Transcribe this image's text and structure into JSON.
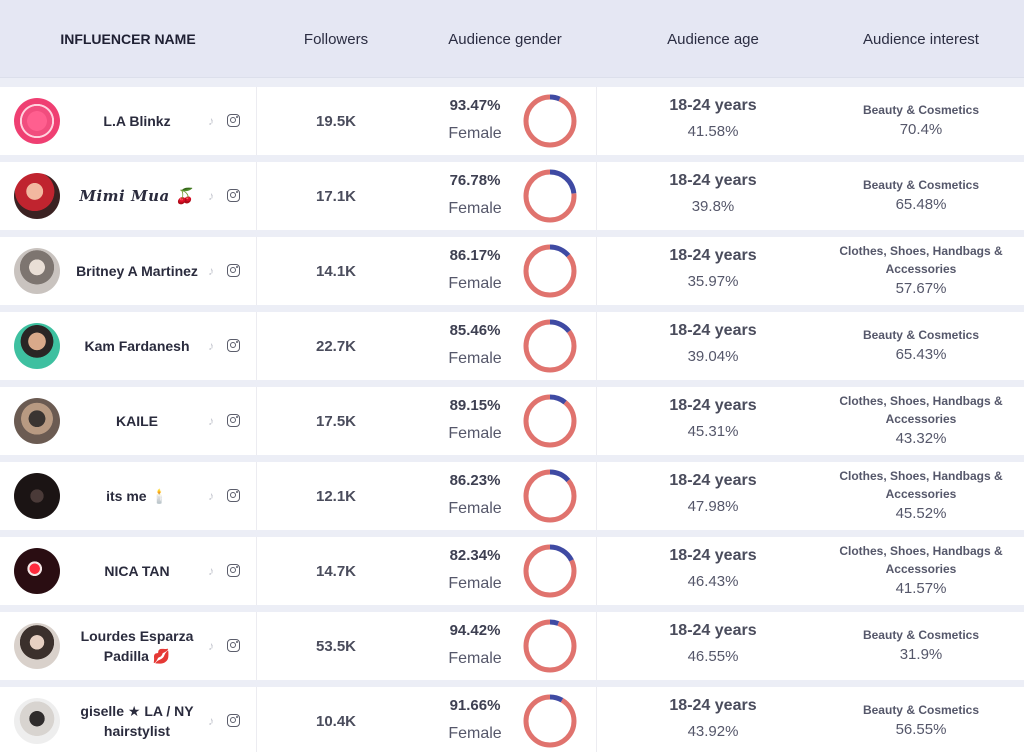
{
  "header": {
    "name": "INFLUENCER NAME",
    "followers": "Followers",
    "gender": "Audience gender",
    "age": "Audience age",
    "interest": "Audience interest"
  },
  "colors": {
    "female_ring": "#e0736e",
    "male_ring": "#3f4aa3",
    "tiktok_icon": "#c6c8d0",
    "instagram_icon": "#5b5d6b"
  },
  "rows": [
    {
      "name": "L.A Blinkz",
      "followers": "19.5K",
      "gender_pct": "93.47%",
      "gender_value": 93.47,
      "gender_label": "Female",
      "age": "18-24 years",
      "age_pct": "41.58%",
      "interest": "Beauty & Cosmetics",
      "interest_pct": "70.4%",
      "avatar": "logo-avatar"
    },
    {
      "name": "𝑴𝒊𝒎𝒊 𝑴𝒖𝒂 🍒",
      "followers": "17.1K",
      "gender_pct": "76.78%",
      "gender_value": 76.78,
      "gender_label": "Female",
      "age": "18-24 years",
      "age_pct": "39.8%",
      "interest": "Beauty & Cosmetics",
      "interest_pct": "65.48%",
      "avatar": "photo-avatar"
    },
    {
      "name": "Britney A Martinez",
      "followers": "14.1K",
      "gender_pct": "86.17%",
      "gender_value": 86.17,
      "gender_label": "Female",
      "age": "18-24 years",
      "age_pct": "35.97%",
      "interest": "Clothes, Shoes, Handbags & Accessories",
      "interest_pct": "57.67%",
      "avatar": "photo-avatar"
    },
    {
      "name": "Kam Fardanesh",
      "followers": "22.7K",
      "gender_pct": "85.46%",
      "gender_value": 85.46,
      "gender_label": "Female",
      "age": "18-24 years",
      "age_pct": "39.04%",
      "interest": "Beauty & Cosmetics",
      "interest_pct": "65.43%",
      "avatar": "photo-avatar"
    },
    {
      "name": "KAILE",
      "followers": "17.5K",
      "gender_pct": "89.15%",
      "gender_value": 89.15,
      "gender_label": "Female",
      "age": "18-24 years",
      "age_pct": "45.31%",
      "interest": "Clothes, Shoes, Handbags & Accessories",
      "interest_pct": "43.32%",
      "avatar": "photo-avatar"
    },
    {
      "name": "its me 🕯️",
      "followers": "12.1K",
      "gender_pct": "86.23%",
      "gender_value": 86.23,
      "gender_label": "Female",
      "age": "18-24 years",
      "age_pct": "47.98%",
      "interest": "Clothes, Shoes, Handbags & Accessories",
      "interest_pct": "45.52%",
      "avatar": "photo-avatar"
    },
    {
      "name": "NICA TAN",
      "followers": "14.7K",
      "gender_pct": "82.34%",
      "gender_value": 82.34,
      "gender_label": "Female",
      "age": "18-24 years",
      "age_pct": "46.43%",
      "interest": "Clothes, Shoes, Handbags & Accessories",
      "interest_pct": "41.57%",
      "avatar": "photo-avatar"
    },
    {
      "name": "Lourdes Esparza Padilla 💋",
      "followers": "53.5K",
      "gender_pct": "94.42%",
      "gender_value": 94.42,
      "gender_label": "Female",
      "age": "18-24 years",
      "age_pct": "46.55%",
      "interest": "Beauty & Cosmetics",
      "interest_pct": "31.9%",
      "avatar": "photo-avatar"
    },
    {
      "name": "giselle ★ LA / NY hairstylist",
      "followers": "10.4K",
      "gender_pct": "91.66%",
      "gender_value": 91.66,
      "gender_label": "Female",
      "age": "18-24 years",
      "age_pct": "43.92%",
      "interest": "Beauty & Cosmetics",
      "interest_pct": "56.55%",
      "avatar": "photo-avatar"
    }
  ]
}
